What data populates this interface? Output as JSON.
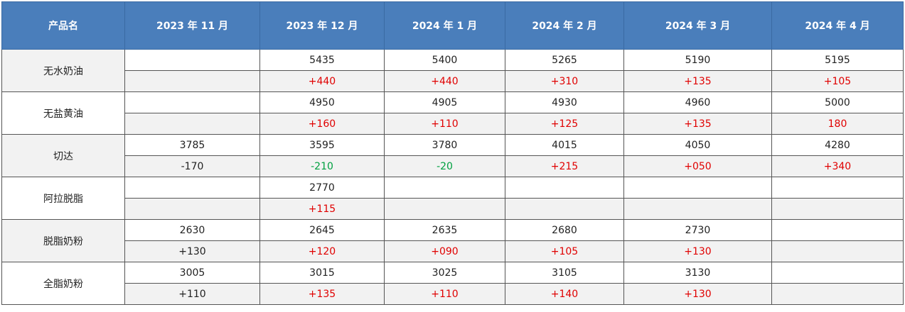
{
  "table": {
    "header": [
      "产品名",
      "2023 年 11 月",
      "2023 年 12 月",
      "2024 年 1 月",
      "2024 年 2 月",
      "2024 年 3 月",
      "2024 年 4 月"
    ],
    "rows": [
      {
        "name": "无水奶油",
        "prices": [
          null,
          "5435",
          "5400",
          "5265",
          "5190",
          "5195"
        ],
        "changes": [
          null,
          "+440",
          "+440",
          "+310",
          "+135",
          "+105"
        ],
        "change_colors": [
          null,
          "#e00000",
          "#e00000",
          "#e00000",
          "#e00000",
          "#e00000"
        ]
      },
      {
        "name": "无盐黄油",
        "prices": [
          null,
          "4950",
          "4905",
          "4930",
          "4960",
          "5000"
        ],
        "changes": [
          null,
          "+160",
          "+110",
          "+125",
          "+135",
          "180"
        ],
        "change_colors": [
          null,
          "#e00000",
          "#e00000",
          "#e00000",
          "#e00000",
          "#e00000"
        ]
      },
      {
        "name": "切达",
        "prices": [
          "3785",
          "3595",
          "3780",
          "4015",
          "4050",
          "4280"
        ],
        "changes": [
          "-170",
          "-210",
          "-20",
          "+215",
          "+050",
          "+340"
        ],
        "change_colors": [
          "#222222",
          "#00a040",
          "#00a040",
          "#e00000",
          "#e00000",
          "#e00000"
        ]
      },
      {
        "name": "阿拉脱脂",
        "prices": [
          null,
          "2770",
          null,
          null,
          null,
          null
        ],
        "changes": [
          null,
          "+115",
          null,
          null,
          null,
          null
        ],
        "change_colors": [
          null,
          "#e00000",
          null,
          null,
          null,
          null
        ]
      },
      {
        "name": "脱脂奶粉",
        "prices": [
          "2630",
          "2645",
          "2635",
          "2680",
          "2730",
          null
        ],
        "changes": [
          "+130",
          "+120",
          "+090",
          "+105",
          "+130",
          null
        ],
        "change_colors": [
          "#222222",
          "#e00000",
          "#e00000",
          "#e00000",
          "#e00000",
          null
        ]
      },
      {
        "name": "全脂奶粉",
        "prices": [
          "3005",
          "3015",
          "3025",
          "3105",
          "3130",
          null
        ],
        "changes": [
          "+110",
          "+135",
          "+110",
          "+140",
          "+130",
          null
        ],
        "change_colors": [
          "#222222",
          "#e00000",
          "#e00000",
          "#e00000",
          "#e00000",
          null
        ]
      }
    ]
  }
}
